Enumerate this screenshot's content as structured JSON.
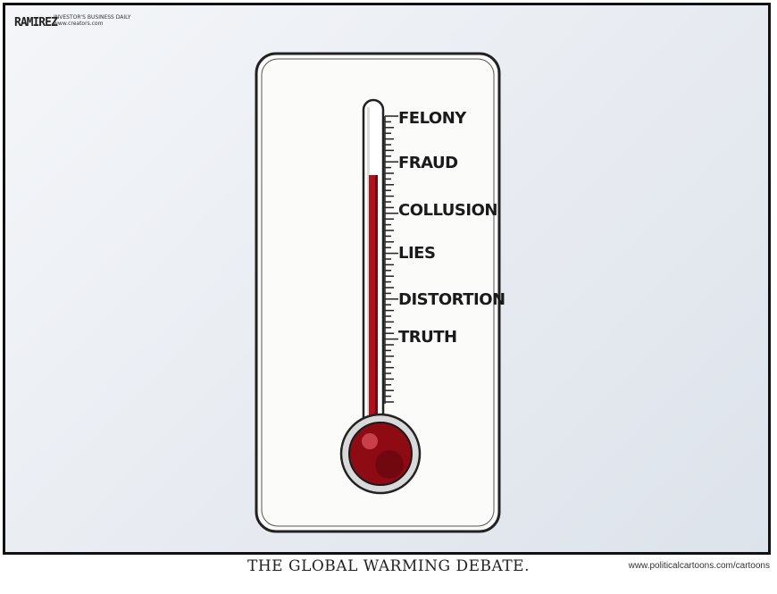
{
  "cartoon": {
    "signature": "RAMIREZ",
    "credit_top": "INVESTOR'S BUSINESS DAILY www.creators.com",
    "caption": "THE GLOBAL WARMING DEBATE.",
    "web_credit": "www.politicalcartoons.com/cartoons"
  },
  "thermometer": {
    "scale_labels": [
      "FELONY",
      "FRAUD",
      "COLLUSION",
      "LIES",
      "DISTORTION",
      "TRUTH"
    ],
    "level": "between FRAUD and COLLUSION",
    "colors": {
      "liquid": "#b0121c",
      "bulb": "#8e0b14",
      "card": "#fbfbfa",
      "outline": "#222222"
    }
  }
}
